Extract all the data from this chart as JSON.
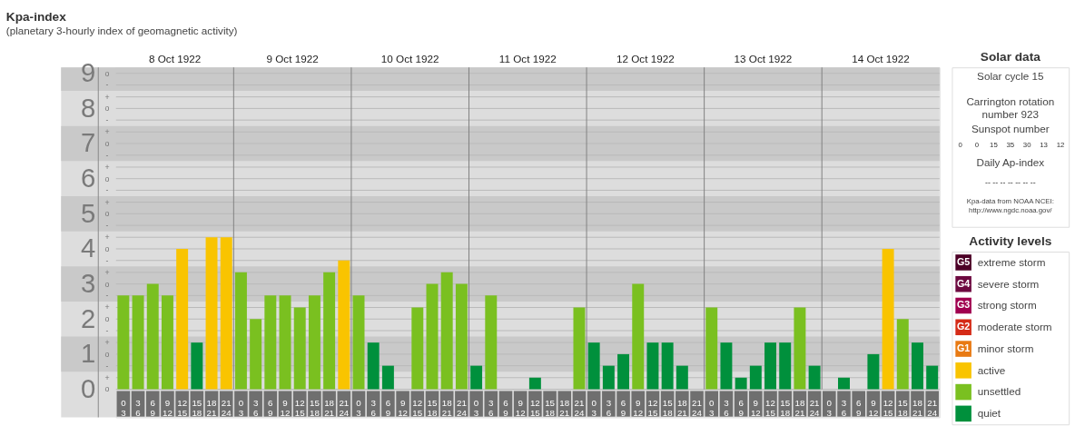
{
  "chart_data": [
    {
      "type": "bar",
      "title": "Kpa-index",
      "subtitle": "(planetary 3-hourly index of geomagnetic activity)",
      "annotations": [
        "o",
        "+",
        "-",
        "o",
        "+",
        "-",
        "o",
        "+",
        "-",
        "o",
        "+",
        "-",
        "o",
        "+",
        "-",
        "o",
        "+",
        "-",
        "o",
        "+",
        "-",
        "o",
        "+",
        "-",
        "o",
        "+",
        "-",
        "o",
        "8 Oct 1922",
        "9 Oct 1922",
        "10 Oct 1922",
        "11 Oct 1922",
        "12 Oct 1922",
        "13 Oct 1922",
        "14 Oct 1922"
      ],
      "categories": [
        "0 3",
        "3 6",
        "6 9",
        "9 12",
        "12 15",
        "15 18",
        "18 21",
        "21 24",
        "0 3",
        "3 6",
        "6 9",
        "9 12",
        "12 15",
        "15 18",
        "18 21",
        "21 24",
        "0 3",
        "3 6",
        "6 9",
        "9 12",
        "12 15",
        "15 18",
        "18 21",
        "21 24",
        "0 3",
        "3 6",
        "6 9",
        "9 12",
        "12 15",
        "15 18",
        "18 21",
        "21 24",
        "0 3",
        "3 6",
        "6 9",
        "9 12",
        "12 15",
        "15 18",
        "18 21",
        "21 24",
        "0 3",
        "3 6",
        "6 9",
        "9 12",
        "12 15",
        "15 18",
        "18 21",
        "21 24",
        "0 3",
        "3 6",
        "6 9",
        "9 12",
        "12 15",
        "15 18",
        "18 21",
        "21 24"
      ],
      "values": [
        2.67,
        2.67,
        3,
        2.67,
        4,
        1.33,
        4.33,
        4.33,
        3.33,
        2,
        2.67,
        2.67,
        2.33,
        2.67,
        3.33,
        3.67,
        2.67,
        1.33,
        0.67,
        0,
        2.33,
        3,
        3.33,
        3,
        0.67,
        2.67,
        0,
        0,
        0.33,
        0,
        0,
        2.33,
        1.33,
        0.67,
        1,
        3,
        1.33,
        1.33,
        0.67,
        0,
        2.33,
        1.33,
        0.33,
        0.67,
        1.33,
        1.33,
        2.33,
        0.67,
        0,
        0.33,
        0,
        1,
        4,
        2,
        1.33,
        0.67
      ],
      "colors": [
        "#7ac020",
        "#7ac020",
        "#7ac020",
        "#7ac020",
        "#f9c400",
        "#00903c",
        "#f9c400",
        "#f9c400",
        "#7ac020",
        "#7ac020",
        "#7ac020",
        "#7ac020",
        "#7ac020",
        "#7ac020",
        "#7ac020",
        "#f9c400",
        "#7ac020",
        "#00903c",
        "#00903c",
        "#00903c",
        "#7ac020",
        "#7ac020",
        "#7ac020",
        "#7ac020",
        "#00903c",
        "#7ac020",
        "#00903c",
        "#00903c",
        "#00903c",
        "#00903c",
        "#00903c",
        "#7ac020",
        "#00903c",
        "#00903c",
        "#00903c",
        "#7ac020",
        "#00903c",
        "#00903c",
        "#00903c",
        "#00903c",
        "#7ac020",
        "#00903c",
        "#00903c",
        "#00903c",
        "#00903c",
        "#00903c",
        "#7ac020",
        "#00903c",
        "#00903c",
        "#00903c",
        "#00903c",
        "#00903c",
        "#f9c400",
        "#7ac020",
        "#00903c",
        "#00903c"
      ],
      "ylim": [
        -0.8,
        9.17
      ],
      "yticks": [
        0,
        {
          "value": 0.33,
          "label": null
        },
        {
          "value": 0.67,
          "label": null
        },
        1,
        {
          "value": 1.33,
          "label": null
        },
        {
          "value": 1.67,
          "label": null
        },
        2,
        {
          "value": 2.33,
          "label": null
        },
        {
          "value": 2.67,
          "label": null
        },
        3,
        {
          "value": 3.33,
          "label": null
        },
        {
          "value": 3.67,
          "label": null
        },
        4,
        {
          "value": 4.33,
          "label": null
        },
        {
          "value": 4.67,
          "label": null
        },
        5,
        {
          "value": 5.33,
          "label": null
        },
        {
          "value": 5.67,
          "label": null
        },
        6,
        {
          "value": 6.33,
          "label": null
        },
        {
          "value": 6.67,
          "label": null
        },
        7,
        {
          "value": 7.33,
          "label": null
        },
        {
          "value": 7.67,
          "label": null
        },
        8,
        {
          "value": 8.33,
          "label": null
        },
        {
          "value": 8.67,
          "label": null
        },
        9
      ],
      "bands": [
        {
          "axis": "y",
          "from": 0.5,
          "to": 1.5,
          "color": "#c9c9c9"
        },
        {
          "axis": "y",
          "from": 2.5,
          "to": 3.5,
          "color": "#c9c9c9"
        },
        {
          "axis": "y",
          "from": 4.5,
          "to": 5.5,
          "color": "#c9c9c9"
        },
        {
          "axis": "y",
          "from": 6.5,
          "to": 7.5,
          "color": "#c9c9c9"
        },
        {
          "axis": "y",
          "from": 8.5,
          "to": 9.17,
          "color": "#c9c9c9"
        }
      ],
      "grid": true
    },
    {
      "type": "other",
      "title": "Solar data",
      "annotations": [
        "Solar cycle 15",
        "Carrington rotation number 923",
        "Sunspot number",
        "Daily Ap-index",
        "--  --  --  --  --  --  --",
        "Kpa-data from NOAA NCEI:",
        "http://www.ngdc.noaa.gov/"
      ],
      "values": [
        0,
        0,
        15,
        35,
        30,
        13,
        12
      ],
      "data_labels": true
    },
    {
      "type": "other",
      "title": "Activity levels",
      "categories": [
        "extreme storm",
        "severe storm",
        "strong storm",
        "moderate storm",
        "minor storm",
        "active",
        "unsettled",
        "quiet"
      ],
      "colors": [
        "#4c0026",
        "#6d0a40",
        "#a0004f",
        "#d52b17",
        "#e87a13",
        "#f9c400",
        "#7ac020",
        "#00903c"
      ],
      "annotations": [
        "G5",
        "G4",
        "G3",
        "G2",
        "G1"
      ]
    }
  ]
}
